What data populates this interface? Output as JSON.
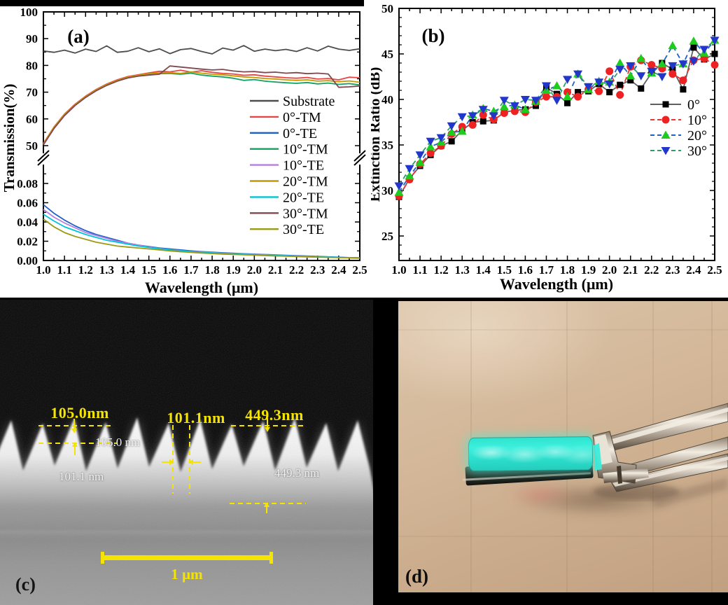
{
  "figure": {
    "panel_c_label": "(c)",
    "panel_d_label": "(d)"
  },
  "sem": {
    "measurements_top": [
      "105.0nm",
      "101.1nm",
      "449.3nm"
    ],
    "measurements_inner": [
      "105.0 nm",
      "101.1 nm",
      "449.3 nm"
    ],
    "scale_bar_label": "1 μm",
    "annotation_color": "#f5e400"
  },
  "photo": {
    "sample_color": "#35e8d6",
    "background_color": "#cdae90"
  },
  "chart_data": [
    {
      "id": "panel_a",
      "type": "line",
      "panel_label": "(a)",
      "xlabel": "Wavelength (μm)",
      "ylabel": "Transmission(%)",
      "broken_axis": true,
      "grid": false,
      "legend_position": "right-middle",
      "x_tick_labels": [
        "1.0",
        "1.1",
        "1.2",
        "1.3",
        "1.4",
        "1.5",
        "1.6",
        "1.7",
        "1.8",
        "1.9",
        "2.0",
        "2.1",
        "2.2",
        "2.3",
        "2.4",
        "2.5"
      ],
      "upper": {
        "ylim": [
          46,
          100
        ],
        "ticks": [
          50,
          60,
          70,
          80,
          90,
          100
        ],
        "tick_labels": [
          "50",
          "60",
          "70",
          "80",
          "90",
          "100"
        ],
        "minor_ticks": [
          55,
          65,
          75,
          85,
          95
        ]
      },
      "lower": {
        "ylim": [
          0,
          0.095
        ],
        "ticks": [
          0,
          0.02,
          0.04,
          0.06,
          0.08
        ],
        "tick_labels": [
          "0.00",
          "0.02",
          "0.04",
          "0.06",
          "0.08"
        ],
        "minor_ticks": [
          0.01,
          0.03,
          0.05,
          0.07,
          0.09
        ]
      },
      "x": [
        1.0,
        1.05,
        1.1,
        1.15,
        1.2,
        1.25,
        1.3,
        1.35,
        1.4,
        1.45,
        1.5,
        1.55,
        1.6,
        1.65,
        1.7,
        1.75,
        1.8,
        1.85,
        1.9,
        1.95,
        2.0,
        2.05,
        2.1,
        2.15,
        2.2,
        2.25,
        2.3,
        2.35,
        2.4,
        2.45,
        2.5
      ],
      "series": [
        {
          "name": "Substrate",
          "color": "#4d4d4d",
          "region": "upper",
          "values": [
            85.4,
            84.9,
            85.7,
            84.6,
            86.1,
            85.2,
            87.3,
            84.9,
            85.3,
            86.6,
            85.1,
            86.2,
            84.4,
            85.9,
            86.3,
            85.2,
            84.3,
            86.5,
            85.7,
            87.4,
            85.3,
            86.1,
            85.5,
            86.0,
            85.2,
            86.6,
            85.4,
            87.2,
            86.1,
            85.6,
            86.2
          ]
        },
        {
          "name": "0°-TM",
          "color": "#e84443",
          "region": "upper",
          "values": [
            50.8,
            57.0,
            61.8,
            65.5,
            68.5,
            71.0,
            73.0,
            74.6,
            75.8,
            76.5,
            77.2,
            77.8,
            77.6,
            78.2,
            77.5,
            78.0,
            77.4,
            77.0,
            76.8,
            76.3,
            76.5,
            76.0,
            75.7,
            75.4,
            75.2,
            75.5,
            74.9,
            75.1,
            74.6,
            75.6,
            75.4
          ]
        },
        {
          "name": "0°-TE",
          "color": "#2061c8",
          "region": "lower",
          "values": [
            0.058,
            0.049,
            0.042,
            0.036,
            0.031,
            0.027,
            0.024,
            0.021,
            0.018,
            0.016,
            0.0145,
            0.013,
            0.012,
            0.011,
            0.01,
            0.0092,
            0.0086,
            0.008,
            0.0075,
            0.007,
            0.0066,
            0.0062,
            0.0058,
            0.0054,
            0.005,
            0.0046,
            0.0042,
            0.0038,
            0.0034,
            0.003,
            0.0028
          ]
        },
        {
          "name": "10°-TM",
          "color": "#13a15f",
          "region": "upper",
          "values": [
            50.5,
            56.6,
            61.4,
            65.2,
            68.2,
            70.7,
            72.7,
            74.3,
            75.5,
            76.2,
            76.6,
            76.9,
            77.0,
            76.7,
            77.1,
            76.4,
            76.0,
            75.7,
            75.2,
            74.4,
            74.7,
            74.1,
            73.8,
            73.5,
            73.3,
            73.6,
            73.1,
            73.4,
            72.9,
            73.2,
            72.7
          ]
        },
        {
          "name": "10°-TE",
          "color": "#b47fe2",
          "region": "lower",
          "values": [
            0.053,
            0.045,
            0.039,
            0.034,
            0.029,
            0.026,
            0.023,
            0.02,
            0.018,
            0.016,
            0.014,
            0.0125,
            0.0112,
            0.0102,
            0.0094,
            0.0088,
            0.0082,
            0.0076,
            0.0071,
            0.0067,
            0.0063,
            0.0059,
            0.0055,
            0.0051,
            0.0047,
            0.0043,
            0.004,
            0.0036,
            0.0032,
            0.0029,
            0.0026
          ]
        },
        {
          "name": "20°-TM",
          "color": "#c29a00",
          "region": "upper",
          "values": [
            50.6,
            56.8,
            61.6,
            65.3,
            68.3,
            70.8,
            72.8,
            74.4,
            75.6,
            76.3,
            76.9,
            77.2,
            77.3,
            77.0,
            77.6,
            77.1,
            76.7,
            76.5,
            76.1,
            75.7,
            75.5,
            75.1,
            74.9,
            74.6,
            74.4,
            74.6,
            74.1,
            74.3,
            73.9,
            74.2,
            73.7
          ]
        },
        {
          "name": "20°-TE",
          "color": "#00c5d6",
          "region": "lower",
          "values": [
            0.048,
            0.041,
            0.035,
            0.031,
            0.027,
            0.024,
            0.021,
            0.019,
            0.017,
            0.015,
            0.0135,
            0.0122,
            0.011,
            0.01,
            0.0092,
            0.0085,
            0.0079,
            0.0074,
            0.0069,
            0.0065,
            0.0061,
            0.0057,
            0.0053,
            0.0049,
            0.0045,
            0.0042,
            0.0038,
            0.0035,
            0.0031,
            0.0028,
            0.0025
          ]
        },
        {
          "name": "30°-TM",
          "color": "#7c4a50",
          "region": "upper",
          "values": [
            50.3,
            56.4,
            61.2,
            65.0,
            68.0,
            70.5,
            72.5,
            74.1,
            75.3,
            76.0,
            76.4,
            76.7,
            79.8,
            79.4,
            79.0,
            78.6,
            78.3,
            78.5,
            77.9,
            77.6,
            77.7,
            77.3,
            77.5,
            77.1,
            77.3,
            76.9,
            77.1,
            76.8,
            71.8,
            72.0,
            72.3
          ]
        },
        {
          "name": "30°-TE",
          "color": "#9a9a14",
          "region": "lower",
          "values": [
            0.043,
            0.035,
            0.029,
            0.025,
            0.022,
            0.019,
            0.017,
            0.015,
            0.014,
            0.013,
            0.012,
            0.011,
            0.01,
            0.0091,
            0.0084,
            0.0078,
            0.0072,
            0.0067,
            0.0063,
            0.0059,
            0.0055,
            0.0051,
            0.0047,
            0.0044,
            0.0041,
            0.0038,
            0.0035,
            0.0032,
            0.0029,
            0.0026,
            0.0023
          ]
        }
      ]
    },
    {
      "id": "panel_b",
      "type": "scatter-line",
      "panel_label": "(b)",
      "xlabel": "Wavelength (μm)",
      "ylabel": "Extinction Ratio (dB)",
      "grid": false,
      "legend_position": "right-middle",
      "ylim": [
        22.3,
        50
      ],
      "yticks": [
        25,
        30,
        35,
        40,
        45,
        50
      ],
      "ytick_labels": [
        "25",
        "30",
        "35",
        "40",
        "45",
        "50"
      ],
      "x_tick_labels": [
        "1.0",
        "1.1",
        "1.2",
        "1.3",
        "1.4",
        "1.5",
        "1.6",
        "1.7",
        "1.8",
        "1.9",
        "2.0",
        "2.1",
        "2.2",
        "2.3",
        "2.4",
        "2.5"
      ],
      "x": [
        1.0,
        1.05,
        1.1,
        1.15,
        1.2,
        1.25,
        1.3,
        1.35,
        1.4,
        1.45,
        1.5,
        1.55,
        1.6,
        1.65,
        1.7,
        1.75,
        1.8,
        1.85,
        1.9,
        1.95,
        2.0,
        2.05,
        2.1,
        2.15,
        2.2,
        2.25,
        2.3,
        2.35,
        2.4,
        2.45,
        2.5
      ],
      "series": [
        {
          "name": "0°",
          "line_color": "#5f5f5f",
          "dash": "none",
          "marker": "square",
          "marker_color": "#000000",
          "values": [
            29.3,
            31.3,
            32.7,
            33.9,
            34.9,
            35.4,
            36.6,
            37.5,
            37.6,
            37.7,
            38.6,
            38.8,
            38.9,
            39.3,
            41.3,
            40.6,
            39.6,
            40.8,
            40.9,
            41.7,
            40.8,
            41.6,
            42.1,
            41.2,
            42.9,
            44.0,
            43.3,
            41.1,
            45.7,
            44.4,
            45.0
          ]
        },
        {
          "name": "10°",
          "line_color": "#ee3333",
          "dash": "7 5",
          "marker": "circle",
          "marker_color": "#ee2222",
          "values": [
            29.4,
            31.2,
            32.9,
            34.1,
            34.9,
            36.2,
            37.0,
            37.2,
            38.3,
            37.8,
            38.5,
            38.7,
            38.6,
            39.7,
            40.3,
            40.3,
            40.8,
            40.3,
            41.1,
            40.9,
            43.1,
            40.5,
            43.6,
            44.3,
            43.8,
            43.4,
            42.8,
            42.1,
            44.3,
            44.5,
            43.8
          ]
        },
        {
          "name": "20°",
          "line_color": "#2061c8",
          "dash": "7 5",
          "marker": "triangle-up",
          "marker_color": "#1ecc1e",
          "values": [
            29.8,
            31.6,
            33.1,
            34.8,
            35.3,
            36.4,
            36.5,
            38.3,
            39.0,
            38.7,
            39.2,
            39.4,
            38.9,
            39.8,
            41.0,
            41.5,
            40.3,
            42.8,
            41.1,
            42.0,
            41.9,
            44.0,
            42.6,
            44.5,
            42.9,
            43.9,
            45.9,
            43.9,
            46.4,
            45.1,
            46.5
          ]
        },
        {
          "name": "30°",
          "line_color": "#2f9e68",
          "dash": "7 5",
          "marker": "triangle-down",
          "marker_color": "#2236cc",
          "values": [
            30.5,
            32.4,
            33.9,
            35.4,
            35.8,
            37.1,
            38.1,
            38.2,
            38.9,
            38.2,
            39.9,
            39.3,
            40.0,
            39.9,
            41.5,
            39.9,
            42.2,
            42.8,
            41.4,
            41.9,
            41.7,
            43.3,
            43.7,
            42.6,
            43.1,
            42.5,
            43.7,
            43.9,
            44.2,
            45.5,
            46.5
          ]
        }
      ]
    }
  ]
}
